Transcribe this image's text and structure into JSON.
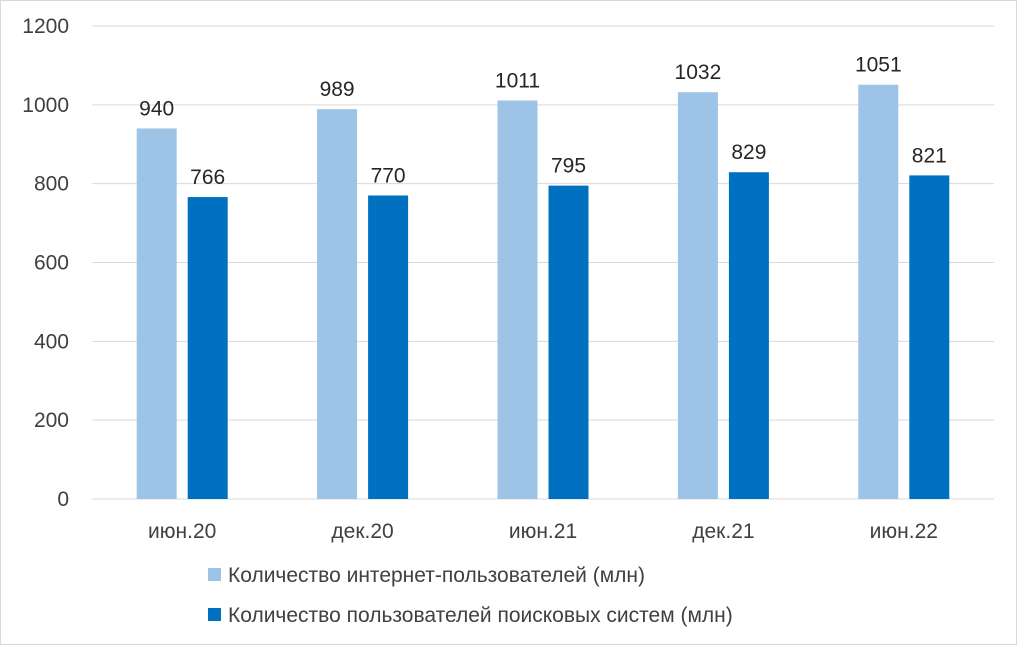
{
  "chart_data": {
    "type": "bar",
    "categories": [
      "июн.20",
      "дек.20",
      "июн.21",
      "дек.21",
      "июн.22"
    ],
    "series": [
      {
        "name": "Количество интернет-пользователей (млн)",
        "values": [
          940,
          989,
          1011,
          1032,
          1051
        ],
        "color": "#9dc3e6"
      },
      {
        "name": "Количество пользователей поисковых систем (млн)",
        "values": [
          766,
          770,
          795,
          829,
          821
        ],
        "color": "#0070c0"
      }
    ],
    "ylim": [
      0,
      1200
    ],
    "yticks": [
      0,
      200,
      400,
      600,
      800,
      1000,
      1200
    ],
    "grid": true,
    "legend_position": "bottom",
    "data_labels": true,
    "gridline_color": "#d9d9d9",
    "axis_line_color": "#d9d9d9"
  }
}
